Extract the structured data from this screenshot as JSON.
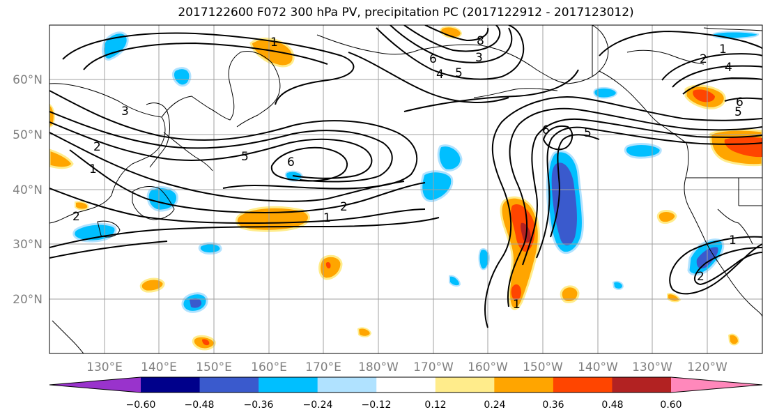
{
  "title": "2017122600 F072 300 hPa PV, precipitation PC (2017122912 - 2017123012)",
  "lat_labels": [
    "60°N",
    "50°N",
    "40°N",
    "30°N",
    "20°N"
  ],
  "lon_labels": [
    "130°E",
    "140°E",
    "150°E",
    "160°E",
    "170°E",
    "180°W",
    "170°W",
    "160°W",
    "150°W",
    "140°W",
    "130°W",
    "120°W"
  ],
  "colorbar": {
    "ticks": [
      "−0.60",
      "−0.48",
      "−0.36",
      "−0.24",
      "−0.12",
      "0.12",
      "0.24",
      "0.36",
      "0.48",
      "0.60"
    ],
    "colors": [
      "#9933cc",
      "#00008b",
      "#3a5acd",
      "#00bfff",
      "#b0e2ff",
      "#ffffff",
      "#ffec8b",
      "#ffa500",
      "#ff4500",
      "#b22222",
      "#ff88bb"
    ]
  },
  "contour_labels": [
    "1",
    "3",
    "5",
    "6",
    "2",
    "1",
    "2",
    "1",
    "6",
    "4",
    "8",
    "3",
    "5",
    "6",
    "5",
    "1",
    "2",
    "4",
    "6",
    "5",
    "1",
    "2",
    "1",
    "2"
  ]
}
